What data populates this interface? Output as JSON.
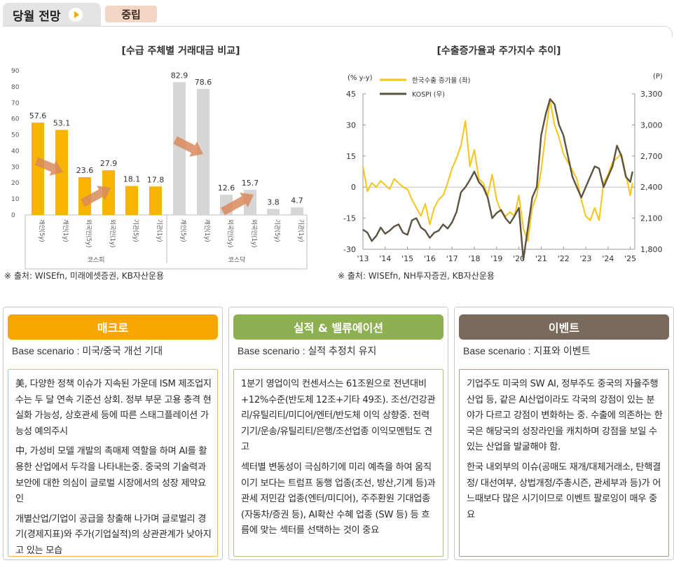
{
  "header": {
    "title": "당월 전망",
    "badge": "중립"
  },
  "colors": {
    "orange": "#f7b400",
    "grey_bar": "#d6d6d6",
    "arrow": "#d9895a",
    "green": "#8db150",
    "brown": "#7a6a5b",
    "export_line": "#f5c518",
    "kospi_line": "#5c5343"
  },
  "chart_data": [
    {
      "type": "bar",
      "title": "[수급 주체별 거래대금 비교]",
      "ylim": [
        0,
        90
      ],
      "yticks": [
        "0",
        "10",
        "20",
        "30",
        "40",
        "50",
        "60",
        "70",
        "80",
        "90"
      ],
      "groups": [
        {
          "name": "코스피",
          "categories": [
            "개인(5y)",
            "개인(1y)",
            "외국인(5y)",
            "외국인(1y)",
            "기관(5y)",
            "기관(1y)"
          ],
          "values": [
            57.6,
            53.1,
            23.6,
            27.9,
            18.1,
            17.8
          ],
          "value_labels": [
            "57.6",
            "53.1",
            "23.6",
            "27.9",
            "18.1",
            "17.8"
          ]
        },
        {
          "name": "코스닥",
          "categories": [
            "개인(5y)",
            "개인(1y)",
            "외국인(5y)",
            "외국인(1y)",
            "기관(5y)",
            "기관(1y)"
          ],
          "values": [
            82.9,
            78.6,
            12.6,
            15.7,
            3.8,
            4.7
          ],
          "value_labels": [
            "82.9",
            "78.6",
            "12.6",
            "15.7",
            "3.8",
            "4.7"
          ]
        }
      ],
      "source": "※ 출처: WISEfn, 미래에셋증권, KB자산운용"
    },
    {
      "type": "line",
      "title": "[수출증가율과 주가지수 추이]",
      "left_unit": "(% y-y)",
      "right_unit": "(P)",
      "left_ylim": [
        -30,
        45
      ],
      "left_yticks": [
        "45",
        "30",
        "15",
        "0",
        "-15",
        "-30"
      ],
      "right_ylim": [
        1800,
        3300
      ],
      "right_yticks": [
        "3,300",
        "3,000",
        "2,700",
        "2,400",
        "2,100",
        "1,800"
      ],
      "xticks": [
        "'13",
        "'14",
        "'15",
        "'16",
        "'17",
        "'18",
        "'19",
        "'20",
        "'21",
        "'22",
        "'23",
        "'24",
        "'25"
      ],
      "x_start": 2013.0,
      "x_end": 2025.2,
      "series": [
        {
          "name": "한국수출 증가율 (좌)",
          "axis": "left",
          "x": [
            2013.0,
            2013.2,
            2013.4,
            2013.6,
            2013.8,
            2014.0,
            2014.2,
            2014.4,
            2014.6,
            2014.8,
            2015.0,
            2015.2,
            2015.4,
            2015.6,
            2015.8,
            2016.0,
            2016.2,
            2016.4,
            2016.6,
            2016.8,
            2017.0,
            2017.2,
            2017.4,
            2017.6,
            2017.8,
            2018.0,
            2018.2,
            2018.4,
            2018.6,
            2018.8,
            2019.0,
            2019.2,
            2019.4,
            2019.6,
            2019.8,
            2020.0,
            2020.2,
            2020.4,
            2020.6,
            2020.8,
            2021.0,
            2021.2,
            2021.4,
            2021.6,
            2021.8,
            2022.0,
            2022.2,
            2022.4,
            2022.6,
            2022.8,
            2023.0,
            2023.2,
            2023.4,
            2023.6,
            2023.8,
            2024.0,
            2024.2,
            2024.4,
            2024.6,
            2024.8,
            2025.0,
            2025.1
          ],
          "values": [
            10,
            -2,
            2,
            0,
            3,
            1,
            -1,
            4,
            2,
            0,
            -1,
            -6,
            -10,
            -14,
            -8,
            -18,
            -10,
            -6,
            -4,
            2,
            9,
            14,
            20,
            32,
            10,
            18,
            4,
            2,
            -4,
            6,
            -6,
            -12,
            -14,
            -12,
            -14,
            -4,
            -20,
            -26,
            -10,
            -4,
            8,
            26,
            42,
            30,
            24,
            16,
            12,
            8,
            4,
            -6,
            -14,
            -16,
            -10,
            -16,
            2,
            6,
            12,
            14,
            16,
            6,
            -4,
            2
          ]
        },
        {
          "name": "KOSPI (우)",
          "axis": "right",
          "x": [
            2013.0,
            2013.2,
            2013.4,
            2013.6,
            2013.8,
            2014.0,
            2014.2,
            2014.4,
            2014.6,
            2014.8,
            2015.0,
            2015.2,
            2015.4,
            2015.6,
            2015.8,
            2016.0,
            2016.2,
            2016.4,
            2016.6,
            2016.8,
            2017.0,
            2017.2,
            2017.4,
            2017.6,
            2017.8,
            2018.0,
            2018.2,
            2018.4,
            2018.6,
            2018.8,
            2019.0,
            2019.2,
            2019.4,
            2019.6,
            2019.8,
            2020.0,
            2020.2,
            2020.4,
            2020.6,
            2020.8,
            2021.0,
            2021.2,
            2021.4,
            2021.6,
            2021.8,
            2022.0,
            2022.2,
            2022.4,
            2022.6,
            2022.8,
            2023.0,
            2023.2,
            2023.4,
            2023.6,
            2023.8,
            2024.0,
            2024.2,
            2024.4,
            2024.6,
            2024.8,
            2025.0,
            2025.1
          ],
          "values": [
            1990,
            1960,
            1880,
            1930,
            2010,
            1950,
            1980,
            2020,
            2040,
            1960,
            1940,
            2080,
            2100,
            2010,
            1980,
            1910,
            1960,
            1980,
            2040,
            2000,
            2060,
            2160,
            2350,
            2400,
            2470,
            2550,
            2450,
            2400,
            2300,
            2100,
            2150,
            2180,
            2100,
            2050,
            2120,
            2200,
            1700,
            2000,
            2300,
            2400,
            2900,
            3100,
            3250,
            3200,
            3000,
            2900,
            2700,
            2500,
            2400,
            2300,
            2400,
            2500,
            2600,
            2580,
            2400,
            2500,
            2600,
            2800,
            2700,
            2500,
            2450,
            2550
          ]
        }
      ],
      "source": "※ 출처: WISEfn, NH투자증권, KB자산운용"
    }
  ],
  "panels": [
    {
      "title": "매크로",
      "scenario": "Base scenario : 미국/중국 개선 기대",
      "paragraphs": [
        "美, 다양한 정책 이슈가 지속된 가운데 ISM 제조업지수는 두 달 연속 기준선 상회. 정부 부문 고용 충격 현실화 가능성, 상호관세 등에 따른 스태그플레이션 가능성 예의주시",
        "中, 가성비 모델 개발의 촉매제 역할을 하며 AI를 활용한 산업에서 두각을 나타내는중. 중국의 기술력과 보안에 대한 의심이 글로벌 시장에서의 성장 제약요인",
        "개별산업/기업이 공급을 창출해 나가며 글로벌리 경기(경제지표)와 주가(기업실적)의 상관관계가 낮아지고 있는 모습"
      ]
    },
    {
      "title": "실적 & 밸류에이션",
      "scenario": "Base scenario : 실적 추정치 유지",
      "paragraphs": [
        "1분기 영업이익 컨센서스는 61조원으로 전년대비 +12%수준(반도체 12조+기타 49조). 조선/건강관리/유틸리티/미디어/엔터/반도체 이익 상향중. 전력기기/운송/유틸리티/은행/조선업종 이익모멘텀도 견고",
        "섹터별 변동성이 극심하기에 미리 예측을 하여 움직이기 보다는  트럼프 동행 업종(조선, 방산,기계 등)과 관세 저민감 업종(엔터/미디어), 주주환원 기대업종 (자동차/증권 등), AI확산 수혜 업종 (SW 등) 등 흐름에 맞는 섹터를 선택하는 것이 중요"
      ]
    },
    {
      "title": "이벤트",
      "scenario": "Base scenario : 지표와 이벤트",
      "paragraphs": [
        "기업주도 미국의 SW AI, 정부주도 중국의 자율주행산업 등, 같은 AI산업이라도 각국의 강점이 있는 분야가 다르고 강점이 변화하는 중. 수출에 의존하는 한국은 해당국의 성장라인을 캐치하며 강점을 보일 수 있는 산업을 발굴해야 함.",
        "한국 내외부의 이슈(공매도 재개/대체거래소, 탄핵결정/ 대선여부, 상법개정/주총시즌,  관세부과 등)가 어느때보다 많은 시기이므로 이벤트 팔로잉이 매우 중요"
      ]
    }
  ]
}
